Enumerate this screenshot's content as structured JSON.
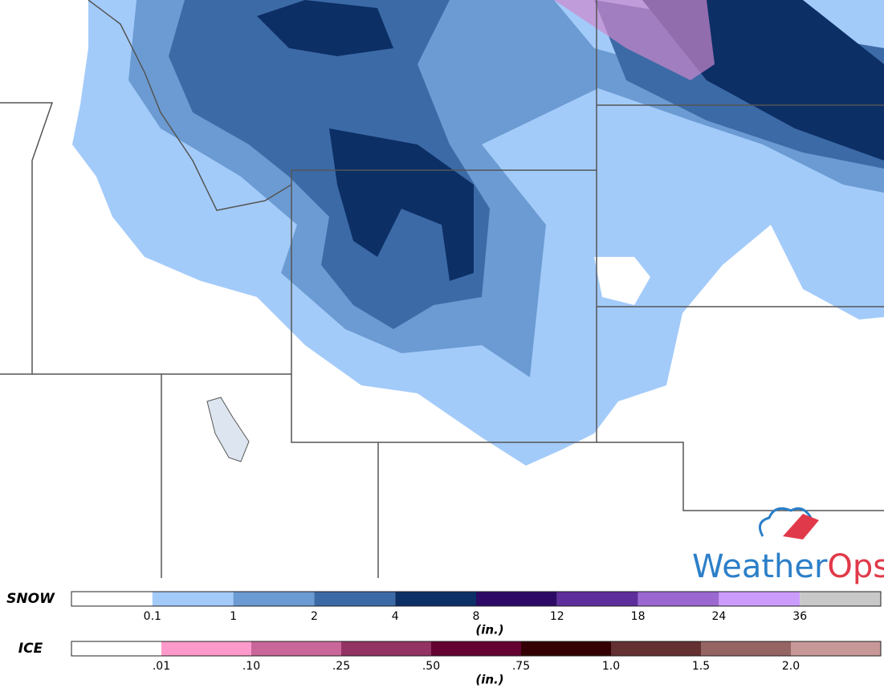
{
  "logo": {
    "left": "Weather",
    "right": "Ops"
  },
  "legends": [
    {
      "label": "SNOW",
      "unit": "(in.)",
      "colors": [
        "#ffffff",
        "#a3cbfa",
        "#6b9bd2",
        "#3c6aa6",
        "#0c2f66",
        "#2c0a66",
        "#5e2e9c",
        "#9a68d0",
        "#cc9cfc",
        "#c8c8c8"
      ],
      "ticks": [
        "0.1",
        "1",
        "2",
        "4",
        "8",
        "12",
        "18",
        "24",
        "36"
      ]
    },
    {
      "label": "ICE",
      "unit": "(in.)",
      "colors": [
        "#ffffff",
        "#fd9acb",
        "#c9669a",
        "#923364",
        "#640232",
        "#340003",
        "#643031",
        "#956564",
        "#c89898"
      ],
      "ticks": [
        ".01",
        ".10",
        ".25",
        ".50",
        ".75",
        "1.0",
        "1.5",
        "2.0"
      ]
    }
  ]
}
